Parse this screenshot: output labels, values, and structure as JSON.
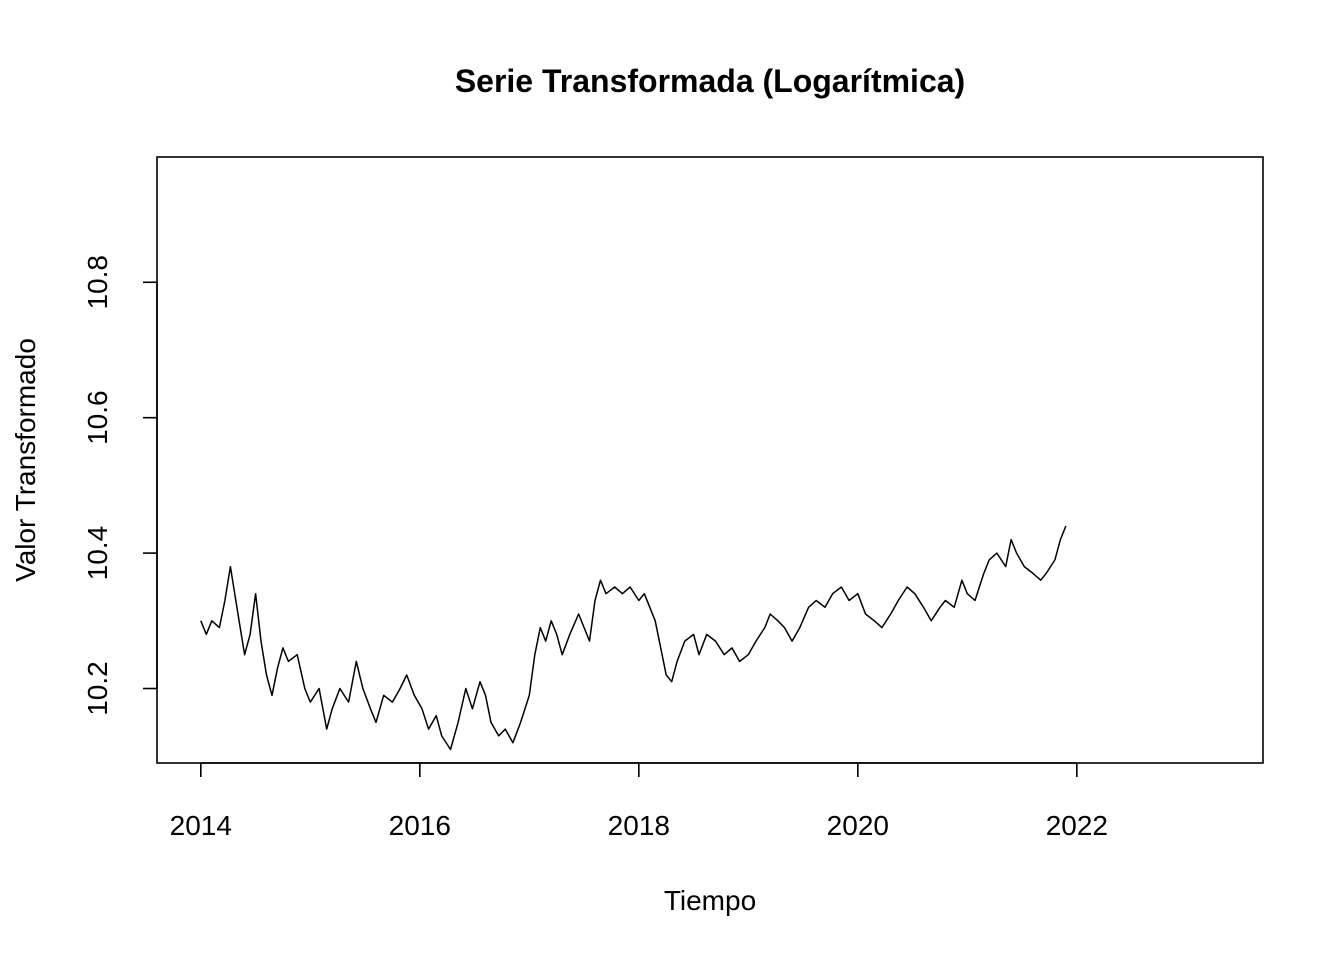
{
  "chart_data": {
    "type": "line",
    "title": "Serie Transformada (Logarítmica)",
    "xlabel": "Tiempo",
    "ylabel": "Valor Transformado",
    "xlim": [
      2013.6,
      2023.7
    ],
    "ylim": [
      10.09,
      10.985
    ],
    "x_ticks": [
      2014,
      2016,
      2018,
      2020,
      2022
    ],
    "x_tick_labels": [
      "2014",
      "2016",
      "2018",
      "2020",
      "2022"
    ],
    "y_ticks": [
      10.2,
      10.4,
      10.6,
      10.8
    ],
    "y_tick_labels": [
      "10.2",
      "10.4",
      "10.6",
      "10.8"
    ],
    "grid": false,
    "series": [
      {
        "color": "#000000",
        "points": [
          [
            2014.0,
            10.3
          ],
          [
            2014.05,
            10.28
          ],
          [
            2014.1,
            10.3
          ],
          [
            2014.17,
            10.29
          ],
          [
            2014.22,
            10.33
          ],
          [
            2014.27,
            10.38
          ],
          [
            2014.33,
            10.32
          ],
          [
            2014.4,
            10.25
          ],
          [
            2014.45,
            10.28
          ],
          [
            2014.5,
            10.34
          ],
          [
            2014.55,
            10.27
          ],
          [
            2014.6,
            10.22
          ],
          [
            2014.65,
            10.19
          ],
          [
            2014.7,
            10.23
          ],
          [
            2014.75,
            10.26
          ],
          [
            2014.8,
            10.24
          ],
          [
            2014.88,
            10.25
          ],
          [
            2014.95,
            10.2
          ],
          [
            2015.0,
            10.18
          ],
          [
            2015.08,
            10.2
          ],
          [
            2015.15,
            10.14
          ],
          [
            2015.2,
            10.17
          ],
          [
            2015.27,
            10.2
          ],
          [
            2015.35,
            10.18
          ],
          [
            2015.42,
            10.24
          ],
          [
            2015.48,
            10.2
          ],
          [
            2015.55,
            10.17
          ],
          [
            2015.6,
            10.15
          ],
          [
            2015.67,
            10.19
          ],
          [
            2015.75,
            10.18
          ],
          [
            2015.82,
            10.2
          ],
          [
            2015.88,
            10.22
          ],
          [
            2015.95,
            10.19
          ],
          [
            2016.02,
            10.17
          ],
          [
            2016.08,
            10.14
          ],
          [
            2016.15,
            10.16
          ],
          [
            2016.2,
            10.13
          ],
          [
            2016.28,
            10.11
          ],
          [
            2016.35,
            10.15
          ],
          [
            2016.42,
            10.2
          ],
          [
            2016.48,
            10.17
          ],
          [
            2016.55,
            10.21
          ],
          [
            2016.6,
            10.19
          ],
          [
            2016.65,
            10.15
          ],
          [
            2016.72,
            10.13
          ],
          [
            2016.78,
            10.14
          ],
          [
            2016.85,
            10.12
          ],
          [
            2016.92,
            10.15
          ],
          [
            2017.0,
            10.19
          ],
          [
            2017.05,
            10.25
          ],
          [
            2017.1,
            10.29
          ],
          [
            2017.15,
            10.27
          ],
          [
            2017.2,
            10.3
          ],
          [
            2017.25,
            10.28
          ],
          [
            2017.3,
            10.25
          ],
          [
            2017.37,
            10.28
          ],
          [
            2017.45,
            10.31
          ],
          [
            2017.5,
            10.29
          ],
          [
            2017.55,
            10.27
          ],
          [
            2017.6,
            10.33
          ],
          [
            2017.65,
            10.36
          ],
          [
            2017.7,
            10.34
          ],
          [
            2017.78,
            10.35
          ],
          [
            2017.85,
            10.34
          ],
          [
            2017.92,
            10.35
          ],
          [
            2018.0,
            10.33
          ],
          [
            2018.05,
            10.34
          ],
          [
            2018.1,
            10.32
          ],
          [
            2018.15,
            10.3
          ],
          [
            2018.2,
            10.26
          ],
          [
            2018.25,
            10.22
          ],
          [
            2018.3,
            10.21
          ],
          [
            2018.35,
            10.24
          ],
          [
            2018.42,
            10.27
          ],
          [
            2018.5,
            10.28
          ],
          [
            2018.55,
            10.25
          ],
          [
            2018.62,
            10.28
          ],
          [
            2018.7,
            10.27
          ],
          [
            2018.78,
            10.25
          ],
          [
            2018.85,
            10.26
          ],
          [
            2018.92,
            10.24
          ],
          [
            2019.0,
            10.25
          ],
          [
            2019.07,
            10.27
          ],
          [
            2019.15,
            10.29
          ],
          [
            2019.2,
            10.31
          ],
          [
            2019.27,
            10.3
          ],
          [
            2019.33,
            10.29
          ],
          [
            2019.4,
            10.27
          ],
          [
            2019.47,
            10.29
          ],
          [
            2019.55,
            10.32
          ],
          [
            2019.62,
            10.33
          ],
          [
            2019.7,
            10.32
          ],
          [
            2019.77,
            10.34
          ],
          [
            2019.85,
            10.35
          ],
          [
            2019.92,
            10.33
          ],
          [
            2020.0,
            10.34
          ],
          [
            2020.07,
            10.31
          ],
          [
            2020.15,
            10.3
          ],
          [
            2020.22,
            10.29
          ],
          [
            2020.3,
            10.31
          ],
          [
            2020.37,
            10.33
          ],
          [
            2020.45,
            10.35
          ],
          [
            2020.52,
            10.34
          ],
          [
            2020.6,
            10.32
          ],
          [
            2020.67,
            10.3
          ],
          [
            2020.75,
            10.32
          ],
          [
            2020.8,
            10.33
          ],
          [
            2020.88,
            10.32
          ],
          [
            2020.95,
            10.36
          ],
          [
            2021.0,
            10.34
          ],
          [
            2021.07,
            10.33
          ],
          [
            2021.15,
            10.37
          ],
          [
            2021.2,
            10.39
          ],
          [
            2021.27,
            10.4
          ],
          [
            2021.35,
            10.38
          ],
          [
            2021.4,
            10.42
          ],
          [
            2021.45,
            10.4
          ],
          [
            2021.52,
            10.38
          ],
          [
            2021.6,
            10.37
          ],
          [
            2021.67,
            10.36
          ],
          [
            2021.72,
            10.37
          ],
          [
            2021.8,
            10.39
          ],
          [
            2021.85,
            10.42
          ],
          [
            2021.9,
            10.44
          ]
        ]
      }
    ]
  }
}
